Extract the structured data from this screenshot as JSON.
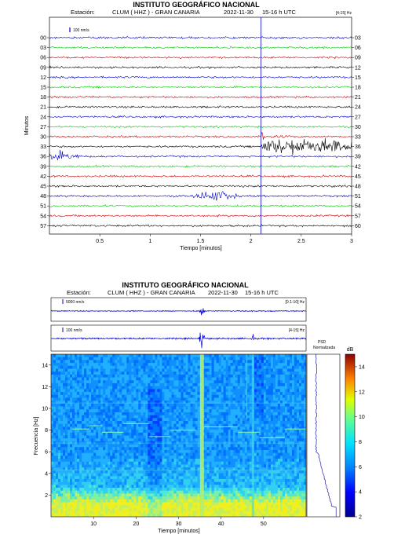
{
  "top": {
    "title": "INSTITUTO GEOGRÁFICO NACIONAL",
    "station_label": "Estación:",
    "station": "CLUM ( HHZ ) - GRAN CANARIA",
    "date": "2022-11-30",
    "time": "15-16 h UTC",
    "filter": "[4-15] Hz",
    "scale": "100 nm/s",
    "ylabel": "Minutos",
    "xlabel": "Tiempo [minutos]",
    "left_ticks": [
      "00",
      "03",
      "06",
      "09",
      "12",
      "15",
      "18",
      "21",
      "24",
      "27",
      "30",
      "33",
      "36",
      "39",
      "42",
      "45",
      "48",
      "51",
      "54",
      "57"
    ],
    "right_ticks": [
      "03",
      "06",
      "09",
      "12",
      "15",
      "18",
      "21",
      "24",
      "27",
      "30",
      "33",
      "36",
      "39",
      "42",
      "45",
      "48",
      "51",
      "54",
      "57",
      "60"
    ],
    "x_ticks": [
      "0.5",
      "1",
      "1.5",
      "2",
      "2.5",
      "3"
    ]
  },
  "bottom": {
    "title": "INSTITUTO GEOGRÁFICO NACIONAL",
    "station_label": "Estación:",
    "station": "CLUM ( HHZ ) - GRAN CANARIA",
    "date": "2022-11-30",
    "time": "15-16 h UTC",
    "trace1_scale": "5000 nm/s",
    "trace1_filter": "[0.1-10] Hz",
    "trace2_scale": "100 nm/s",
    "trace2_filter": "[4-15] Hz",
    "psd_label": "PSD",
    "psd_sub": "Normalizada",
    "cb_label": "dB",
    "ylabel": "Frecuencia [Hz]",
    "xlabel": "Tiempo [minutos]",
    "y_ticks": [
      "2",
      "4",
      "6",
      "8",
      "10",
      "12",
      "14"
    ],
    "x_ticks": [
      "10",
      "20",
      "30",
      "40",
      "50"
    ],
    "cb_ticks": [
      "2",
      "4",
      "6",
      "8",
      "10",
      "12",
      "14"
    ]
  },
  "chart_data": [
    {
      "type": "line",
      "title": "INSTITUTO GEOGRÁFICO NACIONAL",
      "xlabel": "Tiempo [minutos]",
      "ylabel": "Minutos",
      "xlim": [
        0,
        3
      ],
      "rows": 20,
      "colors": [
        "#0000cc",
        "#00cc00",
        "#cc0000",
        "#000000"
      ],
      "row_start_minutes": [
        0,
        3,
        6,
        9,
        12,
        15,
        18,
        21,
        24,
        27,
        30,
        33,
        36,
        39,
        42,
        45,
        48,
        51,
        54,
        57
      ],
      "events": [
        {
          "row_start": 33,
          "from": 2.1,
          "to": 3.0,
          "type": "strong"
        },
        {
          "row_start": 36,
          "from": 0.0,
          "to": 0.35,
          "type": "decay"
        },
        {
          "row_start": 48,
          "from": 1.4,
          "to": 1.9,
          "type": "burst"
        },
        {
          "row_start": 30,
          "from": 2.1,
          "to": 2.45,
          "type": "spike"
        }
      ],
      "marker_minute": 2.1
    },
    {
      "type": "heatmap",
      "title": "INSTITUTO GEOGRÁFICO NACIONAL",
      "xlabel": "Tiempo [minutos]",
      "ylabel": "Frecuencia [Hz]",
      "xlim": [
        0,
        60
      ],
      "ylim": [
        0,
        15
      ],
      "colorbar": {
        "label": "dB",
        "range": [
          2,
          15
        ]
      },
      "bright_vertical_at_minutes": [
        35.5,
        47.5
      ],
      "low_freq_band_hz": [
        0,
        2
      ]
    }
  ]
}
